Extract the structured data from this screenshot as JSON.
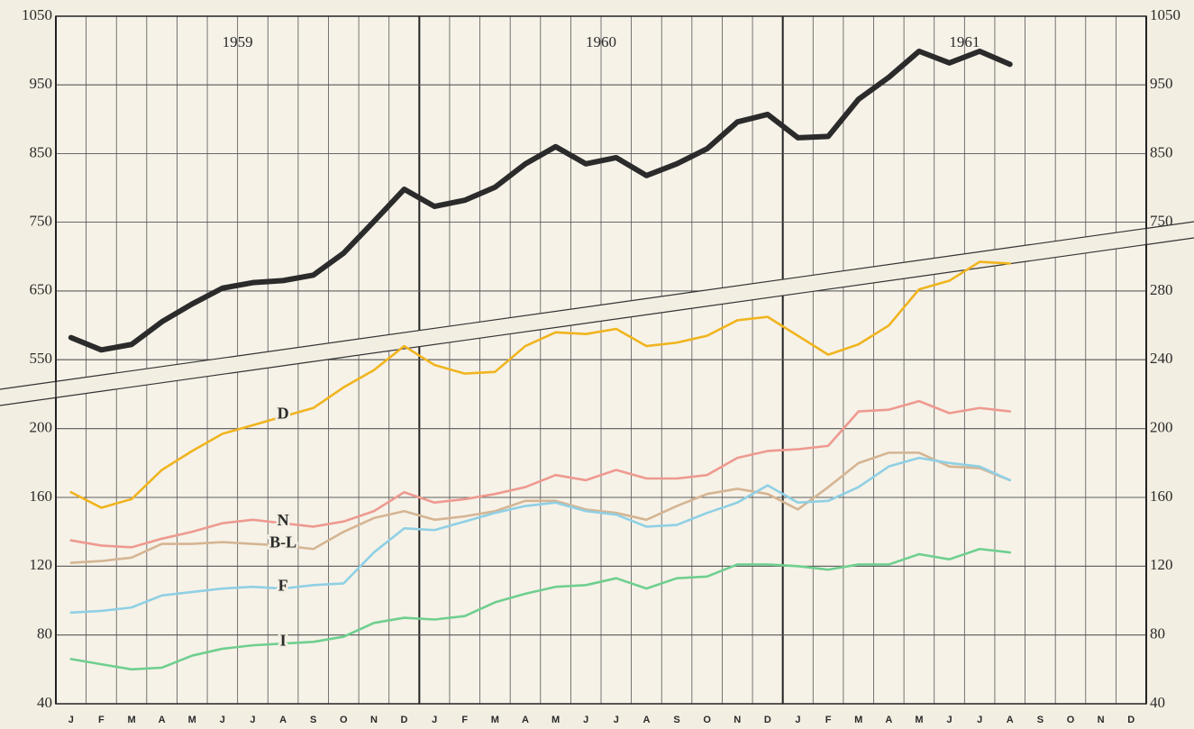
{
  "chart_data": {
    "type": "line",
    "categories": [
      "J",
      "F",
      "M",
      "A",
      "M",
      "J",
      "J",
      "A",
      "S",
      "O",
      "N",
      "D",
      "J",
      "F",
      "M",
      "A",
      "M",
      "J",
      "J",
      "A",
      "S",
      "O",
      "N",
      "D",
      "J",
      "F",
      "M",
      "A",
      "M",
      "J",
      "J",
      "A",
      "S",
      "O",
      "N",
      "D"
    ],
    "year_labels": [
      "1959",
      "1960",
      "1961"
    ],
    "ylim": [
      40,
      280
    ],
    "yticks": [
      40,
      80,
      120,
      160,
      200
    ],
    "yticks_right": [
      40,
      80,
      120,
      160,
      200,
      240,
      280
    ],
    "y2lim": [
      550,
      1050
    ],
    "y2ticks": [
      550,
      650,
      750,
      850,
      950,
      1050
    ],
    "y2ticks_right": [
      750,
      850,
      950,
      1050
    ],
    "grid": true,
    "series": [
      {
        "color": "#2b2b2b",
        "axis": "y2",
        "values": [
          582,
          564,
          572,
          605,
          631,
          654,
          662,
          665,
          673,
          705,
          751,
          798,
          773,
          782,
          801,
          835,
          860,
          835,
          844,
          818,
          835,
          857,
          896,
          907,
          873,
          875,
          929,
          961,
          999,
          982,
          999,
          980,
          null,
          null,
          null,
          null
        ]
      },
      {
        "name": "D",
        "color": "#f0b41e",
        "values": [
          163,
          154,
          159,
          176,
          187,
          197,
          202,
          207,
          212,
          224,
          234,
          248,
          237,
          232,
          233,
          248,
          256,
          255,
          258,
          248,
          250,
          254,
          263,
          265,
          254,
          243,
          249,
          260,
          281,
          286,
          297,
          296,
          null,
          null,
          null,
          null
        ]
      },
      {
        "name": "N",
        "color": "#ee9a90",
        "values": [
          135,
          132,
          131,
          136,
          140,
          145,
          147,
          145,
          143,
          146,
          152,
          163,
          157,
          159,
          162,
          166,
          173,
          170,
          176,
          171,
          171,
          173,
          183,
          187,
          188,
          190,
          210,
          211,
          216,
          209,
          212,
          210,
          null,
          null,
          null,
          null
        ]
      },
      {
        "name": "B-L",
        "color": "#d5b593",
        "values": [
          122,
          123,
          125,
          133,
          133,
          134,
          133,
          132,
          130,
          140,
          148,
          152,
          147,
          149,
          152,
          158,
          158,
          153,
          151,
          147,
          155,
          162,
          165,
          162,
          153,
          166,
          180,
          186,
          186,
          178,
          177,
          170,
          null,
          null,
          null,
          null
        ]
      },
      {
        "name": "F",
        "color": "#8fd0e4",
        "values": [
          93,
          94,
          96,
          103,
          105,
          107,
          108,
          107,
          109,
          110,
          128,
          142,
          141,
          146,
          151,
          155,
          157,
          152,
          150,
          143,
          144,
          151,
          157,
          167,
          157,
          158,
          166,
          178,
          183,
          180,
          178,
          170,
          null,
          null,
          null,
          null
        ]
      },
      {
        "name": "I",
        "color": "#6fcf8f",
        "values": [
          66,
          63,
          60,
          61,
          68,
          72,
          74,
          75,
          76,
          79,
          87,
          90,
          89,
          91,
          99,
          104,
          108,
          109,
          113,
          107,
          113,
          114,
          121,
          121,
          120,
          118,
          121,
          121,
          127,
          124,
          130,
          128,
          null,
          null,
          null,
          null
        ]
      }
    ]
  }
}
